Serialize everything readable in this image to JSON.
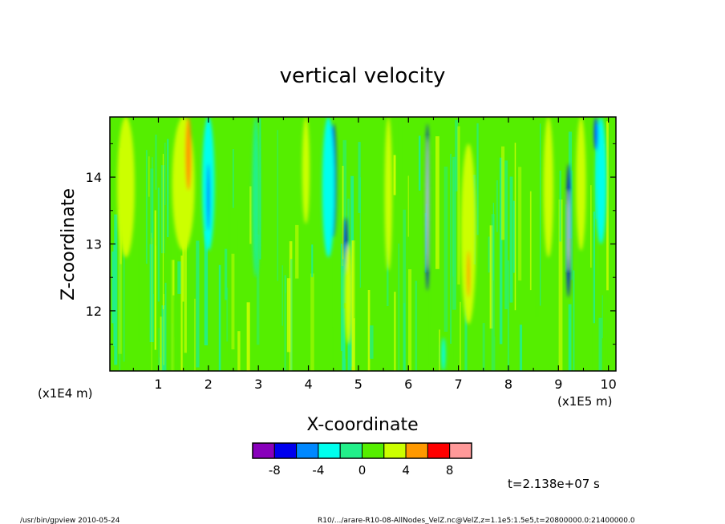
{
  "chart_data": {
    "type": "heatmap",
    "title": "vertical velocity",
    "xlabel": "X-coordinate",
    "ylabel": "Z-coordinate",
    "x_unit": "(x1E5 m)",
    "y_unit": "(x1E4 m)",
    "x_range": [
      0.03,
      10.15
    ],
    "y_range": [
      11.1,
      14.9
    ],
    "x_ticks": [
      1,
      2,
      3,
      4,
      5,
      6,
      7,
      8,
      9,
      10
    ],
    "y_ticks": [
      12,
      13,
      14
    ],
    "x_tick_labels": [
      "1",
      "2",
      "3",
      "4",
      "5",
      "6",
      "7",
      "8",
      "9",
      "10"
    ],
    "y_tick_labels": [
      "12",
      "13",
      "14"
    ],
    "background_level_color": "#55ee00",
    "features": [
      {
        "kind": "band",
        "x": 0.35,
        "width": 0.35,
        "z": [
          12.8,
          14.9
        ],
        "color": "#ccff00"
      },
      {
        "kind": "band",
        "x": 1.5,
        "width": 0.45,
        "z": [
          12.9,
          14.9
        ],
        "color": "#ccff00"
      },
      {
        "kind": "band",
        "x": 1.6,
        "width": 0.12,
        "z": [
          13.8,
          14.9
        ],
        "color": "#ff9900"
      },
      {
        "kind": "band",
        "x": 2.0,
        "width": 0.25,
        "z": [
          12.9,
          14.9
        ],
        "color": "#00ffee"
      },
      {
        "kind": "band",
        "x": 2.0,
        "width": 0.05,
        "z": [
          13.2,
          14.2
        ],
        "color": "#0050ff"
      },
      {
        "kind": "band",
        "x": 2.95,
        "width": 0.15,
        "z": [
          12.5,
          14.9
        ],
        "color": "#22f08a"
      },
      {
        "kind": "band",
        "x": 3.95,
        "width": 0.15,
        "z": [
          13.3,
          14.9
        ],
        "color": "#ccff00"
      },
      {
        "kind": "band",
        "x": 4.5,
        "width": 0.12,
        "z": [
          13.1,
          14.8
        ],
        "color": "#0000ee"
      },
      {
        "kind": "band",
        "x": 4.4,
        "width": 0.25,
        "z": [
          12.8,
          14.9
        ],
        "color": "#00ffee"
      },
      {
        "kind": "band",
        "x": 4.75,
        "width": 0.06,
        "z": [
          12.4,
          13.4
        ],
        "color": "#0000ee"
      },
      {
        "kind": "band",
        "x": 4.8,
        "width": 0.15,
        "z": [
          11.5,
          13.0
        ],
        "color": "#ccff00"
      },
      {
        "kind": "band",
        "x": 5.6,
        "width": 0.15,
        "z": [
          12.6,
          14.9
        ],
        "color": "#ccff00"
      },
      {
        "kind": "band",
        "x": 6.38,
        "width": 0.07,
        "z": [
          12.3,
          14.8
        ],
        "color": "#0000ee"
      },
      {
        "kind": "band",
        "x": 6.38,
        "width": 0.03,
        "z": [
          12.6,
          14.6
        ],
        "color": "#ffffff"
      },
      {
        "kind": "band",
        "x": 6.7,
        "width": 0.08,
        "z": [
          11.1,
          11.6
        ],
        "color": "#00ffee"
      },
      {
        "kind": "band",
        "x": 7.2,
        "width": 0.3,
        "z": [
          11.8,
          14.5
        ],
        "color": "#ccff00"
      },
      {
        "kind": "band",
        "x": 7.2,
        "width": 0.06,
        "z": [
          12.2,
          12.9
        ],
        "color": "#ff9900"
      },
      {
        "kind": "band",
        "x": 8.8,
        "width": 0.2,
        "z": [
          12.8,
          14.9
        ],
        "color": "#ccff00"
      },
      {
        "kind": "band",
        "x": 9.2,
        "width": 0.08,
        "z": [
          12.2,
          14.2
        ],
        "color": "#0000ee"
      },
      {
        "kind": "band",
        "x": 9.2,
        "width": 0.03,
        "z": [
          12.6,
          13.8
        ],
        "color": "#ffffff"
      },
      {
        "kind": "band",
        "x": 9.45,
        "width": 0.2,
        "z": [
          12.9,
          14.9
        ],
        "color": "#ccff00"
      },
      {
        "kind": "band",
        "x": 9.85,
        "width": 0.22,
        "z": [
          13.0,
          14.9
        ],
        "color": "#00ffee"
      },
      {
        "kind": "band",
        "x": 9.75,
        "width": 0.08,
        "z": [
          14.4,
          14.9
        ],
        "color": "#0050ff"
      }
    ],
    "colorbar": {
      "colors": [
        "#8800bb",
        "#0000ee",
        "#0088ff",
        "#00ffee",
        "#22f08a",
        "#55ee00",
        "#ccff00",
        "#ff9900",
        "#ff0000",
        "#ff9999"
      ],
      "tick_labels": [
        "-8",
        "-4",
        "0",
        "4",
        "8"
      ]
    },
    "time_label": "t=2.138e+07 s"
  },
  "footer": {
    "left": "/usr/bin/gpview  2010-05-24",
    "right": "R10/.../arare-R10-08-AllNodes_VelZ.nc@VelZ,z=1.1e5:1.5e5,t=20800000.0:21400000.0"
  }
}
